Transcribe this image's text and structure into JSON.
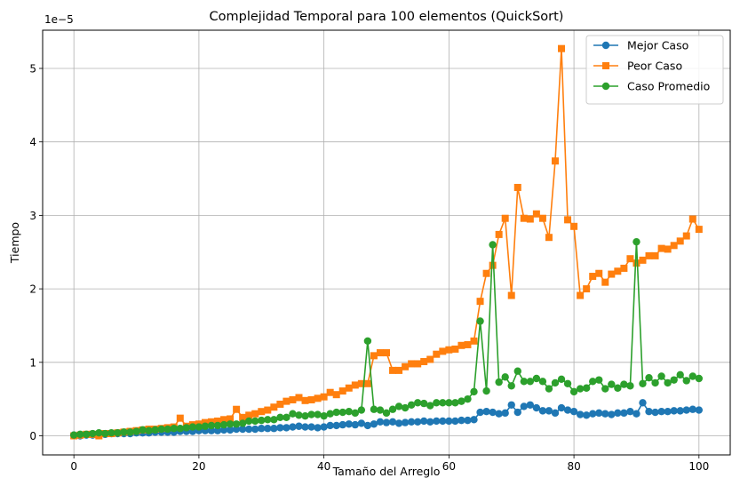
{
  "chart_data": {
    "type": "line",
    "title": "Complejidad Temporal para 100 elementos (QuickSort)",
    "xlabel": "Tamaño del Arreglo",
    "ylabel": "Tiempo",
    "offset_text": "1e−5",
    "xlim": [
      -5,
      105
    ],
    "ylim": [
      -0.26,
      5.52
    ],
    "y_unit_multiplier": 1e-05,
    "xticks": [
      0,
      20,
      40,
      60,
      80,
      100
    ],
    "yticks": [
      0,
      1,
      2,
      3,
      4,
      5
    ],
    "grid": true,
    "legend_position": "top-right",
    "series": [
      {
        "name": "Mejor Caso",
        "color": "#1f77b4",
        "marker": "circle",
        "x": [
          0,
          1,
          2,
          3,
          4,
          5,
          6,
          7,
          8,
          9,
          10,
          11,
          12,
          13,
          14,
          15,
          16,
          17,
          18,
          19,
          20,
          21,
          22,
          23,
          24,
          25,
          26,
          27,
          28,
          29,
          30,
          31,
          32,
          33,
          34,
          35,
          36,
          37,
          38,
          39,
          40,
          41,
          42,
          43,
          44,
          45,
          46,
          47,
          48,
          49,
          50,
          51,
          52,
          53,
          54,
          55,
          56,
          57,
          58,
          59,
          60,
          61,
          62,
          63,
          64,
          65,
          66,
          67,
          68,
          69,
          70,
          71,
          72,
          73,
          74,
          75,
          76,
          77,
          78,
          79,
          80,
          81,
          82,
          83,
          84,
          85,
          86,
          87,
          88,
          89,
          90,
          91,
          92,
          93,
          94,
          95,
          96,
          97,
          98,
          99,
          100
        ],
        "y": [
          0.01,
          0.0,
          0.01,
          0.01,
          0.02,
          0.02,
          0.03,
          0.03,
          0.03,
          0.03,
          0.04,
          0.04,
          0.04,
          0.05,
          0.05,
          0.05,
          0.05,
          0.06,
          0.06,
          0.06,
          0.07,
          0.07,
          0.07,
          0.07,
          0.08,
          0.08,
          0.09,
          0.09,
          0.09,
          0.09,
          0.1,
          0.1,
          0.1,
          0.11,
          0.11,
          0.12,
          0.13,
          0.12,
          0.12,
          0.11,
          0.12,
          0.14,
          0.14,
          0.15,
          0.16,
          0.15,
          0.17,
          0.14,
          0.16,
          0.19,
          0.18,
          0.19,
          0.17,
          0.18,
          0.19,
          0.19,
          0.2,
          0.19,
          0.2,
          0.2,
          0.2,
          0.2,
          0.21,
          0.21,
          0.22,
          0.32,
          0.33,
          0.32,
          0.3,
          0.31,
          0.42,
          0.32,
          0.4,
          0.42,
          0.38,
          0.34,
          0.34,
          0.31,
          0.38,
          0.35,
          0.33,
          0.29,
          0.28,
          0.3,
          0.31,
          0.3,
          0.29,
          0.31,
          0.31,
          0.33,
          0.3,
          0.45,
          0.33,
          0.32,
          0.33,
          0.33,
          0.34,
          0.34,
          0.35,
          0.36,
          0.35
        ]
      },
      {
        "name": "Peor Caso",
        "color": "#ff7f0e",
        "marker": "square",
        "x": [
          0,
          1,
          2,
          3,
          4,
          5,
          6,
          7,
          8,
          9,
          10,
          11,
          12,
          13,
          14,
          15,
          16,
          17,
          18,
          19,
          20,
          21,
          22,
          23,
          24,
          25,
          26,
          27,
          28,
          29,
          30,
          31,
          32,
          33,
          34,
          35,
          36,
          37,
          38,
          39,
          40,
          41,
          42,
          43,
          44,
          45,
          46,
          47,
          48,
          49,
          50,
          51,
          52,
          53,
          54,
          55,
          56,
          57,
          58,
          59,
          60,
          61,
          62,
          63,
          64,
          65,
          66,
          67,
          68,
          69,
          70,
          71,
          72,
          73,
          74,
          75,
          76,
          77,
          78,
          79,
          80,
          81,
          82,
          83,
          84,
          85,
          86,
          87,
          88,
          89,
          90,
          91,
          92,
          93,
          94,
          95,
          96,
          97,
          98,
          99,
          100
        ],
        "y": [
          0.0,
          0.01,
          0.02,
          0.02,
          0.0,
          0.03,
          0.03,
          0.04,
          0.05,
          0.06,
          0.07,
          0.08,
          0.09,
          0.09,
          0.1,
          0.11,
          0.12,
          0.24,
          0.13,
          0.15,
          0.16,
          0.18,
          0.19,
          0.2,
          0.22,
          0.23,
          0.36,
          0.25,
          0.28,
          0.3,
          0.33,
          0.35,
          0.39,
          0.43,
          0.47,
          0.49,
          0.52,
          0.48,
          0.49,
          0.51,
          0.53,
          0.59,
          0.56,
          0.61,
          0.65,
          0.69,
          0.71,
          0.71,
          1.09,
          1.13,
          1.13,
          0.89,
          0.89,
          0.94,
          0.98,
          0.98,
          1.01,
          1.04,
          1.11,
          1.15,
          1.17,
          1.18,
          1.23,
          1.24,
          1.29,
          1.83,
          2.21,
          2.32,
          2.74,
          2.96,
          1.91,
          3.38,
          2.96,
          2.95,
          3.02,
          2.96,
          2.7,
          3.74,
          5.27,
          2.94,
          2.85,
          1.91,
          2.0,
          2.17,
          2.21,
          2.09,
          2.2,
          2.24,
          2.28,
          2.41,
          2.35,
          2.39,
          2.45,
          2.45,
          2.55,
          2.54,
          2.59,
          2.65,
          2.72,
          2.95,
          2.81
        ]
      },
      {
        "name": "Caso Promedio",
        "color": "#2ca02c",
        "marker": "circle",
        "x": [
          0,
          1,
          2,
          3,
          4,
          5,
          6,
          7,
          8,
          9,
          10,
          11,
          12,
          13,
          14,
          15,
          16,
          17,
          18,
          19,
          20,
          21,
          22,
          23,
          24,
          25,
          26,
          27,
          28,
          29,
          30,
          31,
          32,
          33,
          34,
          35,
          36,
          37,
          38,
          39,
          40,
          41,
          42,
          43,
          44,
          45,
          46,
          47,
          48,
          49,
          50,
          51,
          52,
          53,
          54,
          55,
          56,
          57,
          58,
          59,
          60,
          61,
          62,
          63,
          64,
          65,
          66,
          67,
          68,
          69,
          70,
          71,
          72,
          73,
          74,
          75,
          76,
          77,
          78,
          79,
          80,
          81,
          82,
          83,
          84,
          85,
          86,
          87,
          88,
          89,
          90,
          91,
          92,
          93,
          94,
          95,
          96,
          97,
          98,
          99,
          100
        ],
        "y": [
          0.01,
          0.02,
          0.02,
          0.03,
          0.04,
          0.03,
          0.04,
          0.04,
          0.05,
          0.05,
          0.06,
          0.08,
          0.07,
          0.08,
          0.09,
          0.09,
          0.1,
          0.1,
          0.11,
          0.12,
          0.12,
          0.13,
          0.14,
          0.14,
          0.15,
          0.16,
          0.16,
          0.17,
          0.2,
          0.2,
          0.21,
          0.22,
          0.22,
          0.25,
          0.25,
          0.3,
          0.28,
          0.27,
          0.29,
          0.29,
          0.27,
          0.3,
          0.32,
          0.32,
          0.33,
          0.31,
          0.35,
          1.29,
          0.36,
          0.35,
          0.31,
          0.36,
          0.4,
          0.38,
          0.42,
          0.45,
          0.44,
          0.41,
          0.45,
          0.45,
          0.45,
          0.45,
          0.47,
          0.5,
          0.6,
          1.56,
          0.61,
          2.6,
          0.73,
          0.8,
          0.68,
          0.88,
          0.74,
          0.74,
          0.78,
          0.74,
          0.64,
          0.72,
          0.77,
          0.71,
          0.6,
          0.64,
          0.65,
          0.74,
          0.76,
          0.64,
          0.7,
          0.65,
          0.7,
          0.68,
          2.64,
          0.71,
          0.79,
          0.72,
          0.81,
          0.72,
          0.76,
          0.83,
          0.75,
          0.81,
          0.78
        ]
      }
    ]
  }
}
